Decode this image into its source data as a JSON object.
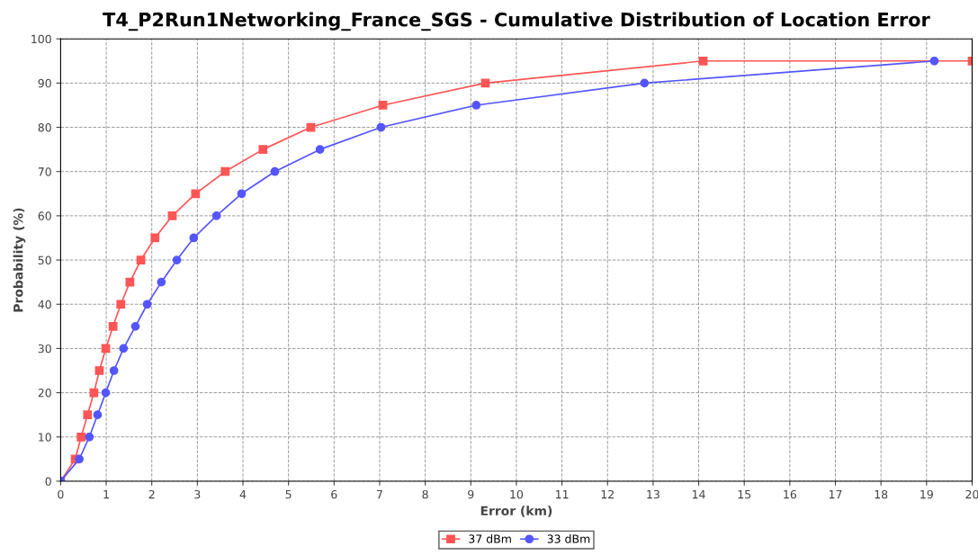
{
  "chart_data": {
    "type": "line",
    "title": "T4_P2Run1Networking_France_SGS - Cumulative Distribution of Location Error",
    "xlabel": "Error (km)",
    "ylabel": "Probability (%)",
    "xlim": [
      0,
      20
    ],
    "xticks": [
      0,
      1,
      2,
      3,
      4,
      5,
      6,
      7,
      8,
      9,
      10,
      11,
      12,
      13,
      14,
      15,
      16,
      17,
      18,
      19,
      20
    ],
    "ylim": [
      0,
      100
    ],
    "yticks": [
      0,
      10,
      20,
      30,
      40,
      50,
      60,
      70,
      80,
      90,
      100
    ],
    "grid": true,
    "legend": "bottom",
    "line_style": "solid",
    "series": [
      {
        "name": "37 dBm",
        "color": "#ff5555",
        "marker": "square",
        "x": [
          0,
          0.32,
          0.45,
          0.59,
          0.73,
          0.85,
          0.99,
          1.15,
          1.32,
          1.52,
          1.76,
          2.07,
          2.45,
          2.96,
          3.61,
          4.44,
          5.49,
          7.07,
          9.32,
          14.1,
          20
        ],
        "values": [
          0,
          5,
          10,
          15,
          20,
          25,
          30,
          35,
          40,
          45,
          50,
          55,
          60,
          65,
          70,
          75,
          80,
          85,
          90,
          95,
          95
        ]
      },
      {
        "name": "33 dBm",
        "color": "#5555ff",
        "marker": "circle",
        "x": [
          0,
          0.41,
          0.63,
          0.81,
          0.99,
          1.17,
          1.38,
          1.64,
          1.9,
          2.21,
          2.55,
          2.92,
          3.42,
          3.97,
          4.7,
          5.69,
          7.03,
          9.12,
          12.81,
          19.17
        ],
        "values": [
          0,
          5,
          10,
          15,
          20,
          25,
          30,
          35,
          40,
          45,
          50,
          55,
          60,
          65,
          70,
          75,
          80,
          85,
          90,
          95
        ]
      }
    ]
  }
}
